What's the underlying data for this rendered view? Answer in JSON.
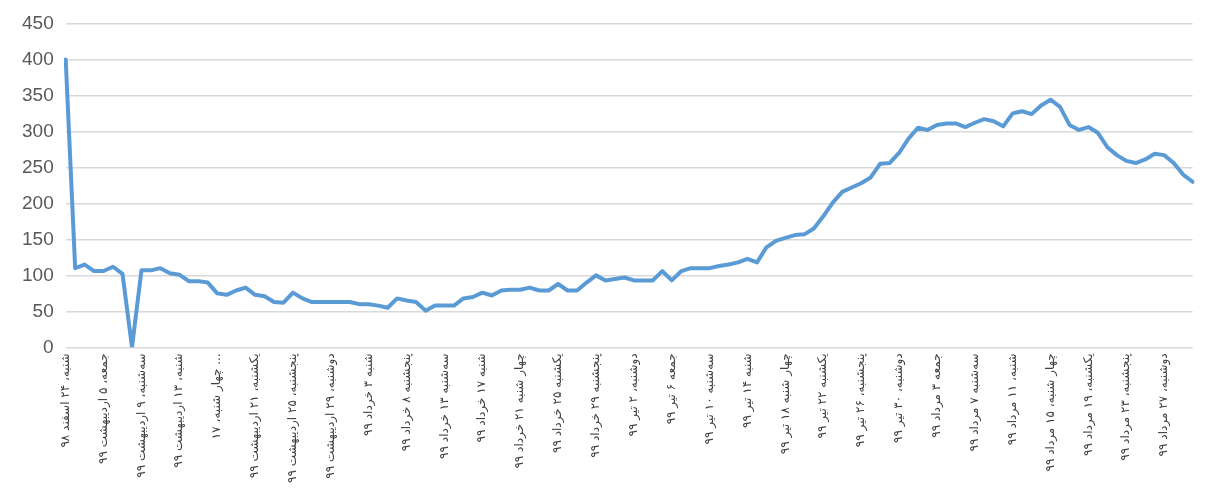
{
  "chart_data": {
    "type": "line",
    "categories": [
      "شنبه، ۲۴ اسفند ۹۸",
      null,
      null,
      null,
      "جمعه، ۵ اردیبهشت ۹۹",
      null,
      null,
      null,
      "سه‌شنبه، ۹ اردیبهشت ۹۹",
      null,
      null,
      null,
      "شنبه، ۱۳ اردیبهشت ۹۹",
      null,
      null,
      null,
      "چهار شنبه، ۱۷ ...",
      null,
      null,
      null,
      "یکشنبه، ۲۱ اردیبهشت ۹۹",
      null,
      null,
      null,
      "پنجشنبه، ۲۵ اردیبهشت ۹۹",
      null,
      null,
      null,
      "دوشنبه، ۲۹ اردیبهشت ۹۹",
      null,
      null,
      null,
      "شنبه ۳ خرداد ۹۹",
      null,
      null,
      null,
      "پنجشنبه ۸ خرداد ۹۹",
      null,
      null,
      null,
      "سه‌شنبه ۱۳ خرداد ۹۹",
      null,
      null,
      null,
      "شنبه ۱۷ خرداد ۹۹",
      null,
      null,
      null,
      "چهار شنبه ۲۱ خرداد ۹۹",
      null,
      null,
      null,
      "یکشنبه ۲۵ خرداد ۹۹",
      null,
      null,
      null,
      "پنجشنبه ۲۹ خرداد ۹۹",
      null,
      null,
      null,
      "دوشنبه، ۲ تیر ۹۹",
      null,
      null,
      null,
      "جمعه ۶ تیر ۹۹",
      null,
      null,
      null,
      "سه‌شنبه ۱۰ تیر ۹۹",
      null,
      null,
      null,
      "شنبه ۱۴ تیر ۹۹",
      null,
      null,
      null,
      "چهار شنبه ۱۸ تیر ۹۹",
      null,
      null,
      null,
      "یکشنبه ۲۲ تیر ۹۹",
      null,
      null,
      null,
      "پنجشنبه، ۲۶ تیر ۹۹",
      null,
      null,
      null,
      "دوشنبه، ۳۰ تیر ۹۹",
      null,
      null,
      null,
      "جمعه ۳ مرداد ۹۹",
      null,
      null,
      null,
      "سه‌شنبه ۷ مرداد ۹۹",
      null,
      null,
      null,
      "شنبه، ۱۱ مرداد ۹۹",
      null,
      null,
      null,
      "چهار شنبه، ۱۵ مرداد ۹۹",
      null,
      null,
      null,
      "یکشنبه، ۱۹ مرداد ۹۹",
      null,
      null,
      null,
      "پنجشنبه، ۲۳ مرداد ۹۹",
      null,
      null,
      null,
      "دوشنبه، ۲۷ مرداد ۹۹",
      null,
      null,
      null
    ],
    "series": [
      {
        "color": "#5b9bd5",
        "values": [
          400,
          110,
          115,
          106,
          106,
          112,
          102,
          0,
          107,
          107,
          110,
          103,
          101,
          92,
          92,
          90,
          75,
          73,
          79,
          83,
          73,
          71,
          63,
          62,
          76,
          68,
          63,
          63,
          63,
          63,
          63,
          60,
          60,
          58,
          55,
          68,
          65,
          63,
          51,
          58,
          58,
          58,
          68,
          70,
          76,
          72,
          79,
          80,
          80,
          83,
          79,
          79,
          88,
          79,
          79,
          90,
          100,
          93,
          95,
          97,
          93,
          93,
          93,
          106,
          93,
          106,
          110,
          110,
          110,
          113,
          115,
          118,
          123,
          118,
          139,
          148,
          152,
          156,
          157,
          165,
          182,
          201,
          216,
          222,
          228,
          236,
          255,
          256,
          270,
          290,
          305,
          302,
          309,
          311,
          311,
          306,
          312,
          317,
          314,
          307,
          325,
          328,
          324,
          336,
          344,
          334,
          309,
          302,
          306,
          298,
          278,
          267,
          259,
          256,
          261,
          269,
          267,
          256,
          240,
          230
        ]
      }
    ],
    "ylim": [
      0,
      450
    ],
    "yticks": [
      0,
      50,
      100,
      150,
      200,
      250,
      300,
      350,
      400,
      450
    ],
    "grid": "y",
    "legend": false,
    "marker": "none",
    "line_style": "solid"
  }
}
